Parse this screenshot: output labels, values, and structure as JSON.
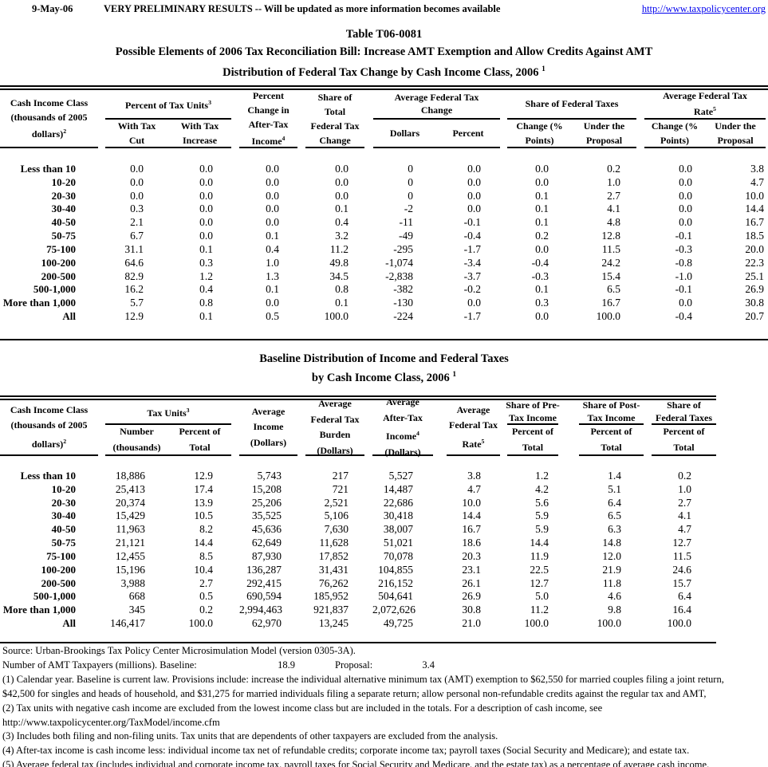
{
  "page_header": {
    "date": "9-May-06",
    "preliminary_note": "VERY PRELIMINARY RESULTS -- Will be updated as more information becomes available",
    "url": "http://www.taxpolicycenter.org"
  },
  "title": {
    "table_number": "Table T06-0081",
    "line1": "Possible Elements of 2006 Tax Reconciliation Bill: Increase AMT Exemption and Allow Credits Against AMT",
    "line2": "Distribution of Federal Tax Change by Cash Income Class, 2006",
    "line2_sup": "1"
  },
  "table1": {
    "stub_head": {
      "lines": [
        "Cash Income Class",
        "(thousands of 2005",
        "dollars)"
      ],
      "sup": "2"
    },
    "columns": [
      {
        "title": {
          "lines": [
            "Percent of Tax Units"
          ],
          "sup": "3"
        },
        "subs": [
          {
            "lines": [
              "With Tax",
              "Cut"
            ]
          },
          {
            "lines": [
              "With Tax",
              "Increase"
            ]
          }
        ]
      },
      {
        "head": {
          "lines": [
            "Percent",
            "Change in",
            "After-Tax",
            "Income"
          ],
          "sup": "4"
        }
      },
      {
        "head": {
          "lines": [
            "Share of",
            "Total",
            "Federal Tax",
            "Change"
          ]
        }
      },
      {
        "title": {
          "lines": [
            "Average Federal Tax",
            "Change"
          ]
        },
        "subs": [
          {
            "lines": [
              "Dollars"
            ]
          },
          {
            "lines": [
              "Percent"
            ]
          }
        ]
      },
      {
        "title": {
          "lines": [
            "Share of Federal Taxes"
          ]
        },
        "subs": [
          {
            "lines": [
              "Change (%",
              "Points)"
            ]
          },
          {
            "lines": [
              "Under the",
              "Proposal"
            ]
          }
        ]
      },
      {
        "title": {
          "lines": [
            "Average Federal Tax",
            "Rate"
          ],
          "sup": "5"
        },
        "subs": [
          {
            "lines": [
              "Change (%",
              "Points)"
            ]
          },
          {
            "lines": [
              "Under the",
              "Proposal"
            ]
          }
        ]
      }
    ],
    "rows": [
      {
        "label": "Less than 10",
        "values": [
          "0.0",
          "0.0",
          "0.0",
          "0.0",
          "0",
          "0.0",
          "0.0",
          "0.2",
          "0.0",
          "3.8"
        ]
      },
      {
        "label": "10-20",
        "values": [
          "0.0",
          "0.0",
          "0.0",
          "0.0",
          "0",
          "0.0",
          "0.0",
          "1.0",
          "0.0",
          "4.7"
        ]
      },
      {
        "label": "20-30",
        "values": [
          "0.0",
          "0.0",
          "0.0",
          "0.0",
          "0",
          "0.0",
          "0.1",
          "2.7",
          "0.0",
          "10.0"
        ]
      },
      {
        "label": "30-40",
        "values": [
          "0.3",
          "0.0",
          "0.0",
          "0.1",
          "-2",
          "0.0",
          "0.1",
          "4.1",
          "0.0",
          "14.4"
        ]
      },
      {
        "label": "40-50",
        "values": [
          "2.1",
          "0.0",
          "0.0",
          "0.4",
          "-11",
          "-0.1",
          "0.1",
          "4.8",
          "0.0",
          "16.7"
        ]
      },
      {
        "label": "50-75",
        "values": [
          "6.7",
          "0.0",
          "0.1",
          "3.2",
          "-49",
          "-0.4",
          "0.2",
          "12.8",
          "-0.1",
          "18.5"
        ]
      },
      {
        "label": "75-100",
        "values": [
          "31.1",
          "0.1",
          "0.4",
          "11.2",
          "-295",
          "-1.7",
          "0.0",
          "11.5",
          "-0.3",
          "20.0"
        ]
      },
      {
        "label": "100-200",
        "values": [
          "64.6",
          "0.3",
          "1.0",
          "49.8",
          "-1,074",
          "-3.4",
          "-0.4",
          "24.2",
          "-0.8",
          "22.3"
        ]
      },
      {
        "label": "200-500",
        "values": [
          "82.9",
          "1.2",
          "1.3",
          "34.5",
          "-2,838",
          "-3.7",
          "-0.3",
          "15.4",
          "-1.0",
          "25.1"
        ]
      },
      {
        "label": "500-1,000",
        "values": [
          "16.2",
          "0.4",
          "0.1",
          "0.8",
          "-382",
          "-0.2",
          "0.1",
          "6.5",
          "-0.1",
          "26.9"
        ]
      },
      {
        "label": "More than 1,000",
        "values": [
          "5.7",
          "0.8",
          "0.0",
          "0.1",
          "-130",
          "0.0",
          "0.3",
          "16.7",
          "0.0",
          "30.8"
        ]
      },
      {
        "label": "All",
        "values": [
          "12.9",
          "0.1",
          "0.5",
          "100.0",
          "-224",
          "-1.7",
          "0.0",
          "100.0",
          "-0.4",
          "20.7"
        ]
      }
    ]
  },
  "table2_title": {
    "line1": "Baseline Distribution of Income and Federal Taxes",
    "line2": "by Cash Income Class, 2006",
    "line2_sup": "1"
  },
  "table2": {
    "stub_head": {
      "lines": [
        "Cash Income Class",
        "(thousands of 2005",
        "dollars)"
      ],
      "sup": "2"
    },
    "columns": [
      {
        "title": {
          "lines": [
            "Tax Units"
          ],
          "sup": "3"
        },
        "subs": [
          {
            "lines": [
              "Number",
              "(thousands)"
            ]
          },
          {
            "lines": [
              "Percent of",
              "Total"
            ]
          }
        ]
      },
      {
        "head": {
          "lines": [
            "Average",
            "Income",
            "(Dollars)"
          ]
        }
      },
      {
        "head": {
          "lines": [
            "Average",
            "Federal Tax",
            "Burden",
            "(Dollars)"
          ]
        }
      },
      {
        "head": {
          "lines": [
            "Average",
            "After-Tax",
            "Income",
            "(Dollars)"
          ],
          "sup": "4",
          "sup_line": 2
        }
      },
      {
        "head": {
          "lines": [
            "Average",
            "Federal Tax",
            "Rate"
          ],
          "sup": "5"
        }
      },
      {
        "title": {
          "lines": [
            "Share of Pre-",
            "Tax Income"
          ]
        },
        "subs": [
          {
            "lines": [
              "Percent of",
              "Total"
            ]
          }
        ]
      },
      {
        "title": {
          "lines": [
            "Share of Post-",
            "Tax Income"
          ]
        },
        "subs": [
          {
            "lines": [
              "Percent of",
              "Total"
            ]
          }
        ]
      },
      {
        "title": {
          "lines": [
            "Share of",
            "Federal Taxes"
          ]
        },
        "subs": [
          {
            "lines": [
              "Percent of",
              "Total"
            ]
          }
        ]
      }
    ],
    "rows": [
      {
        "label": "Less than 10",
        "values": [
          "18,886",
          "12.9",
          "5,743",
          "217",
          "5,527",
          "3.8",
          "1.2",
          "1.4",
          "0.2"
        ]
      },
      {
        "label": "10-20",
        "values": [
          "25,413",
          "17.4",
          "15,208",
          "721",
          "14,487",
          "4.7",
          "4.2",
          "5.1",
          "1.0"
        ]
      },
      {
        "label": "20-30",
        "values": [
          "20,374",
          "13.9",
          "25,206",
          "2,521",
          "22,686",
          "10.0",
          "5.6",
          "6.4",
          "2.7"
        ]
      },
      {
        "label": "30-40",
        "values": [
          "15,429",
          "10.5",
          "35,525",
          "5,106",
          "30,418",
          "14.4",
          "5.9",
          "6.5",
          "4.1"
        ]
      },
      {
        "label": "40-50",
        "values": [
          "11,963",
          "8.2",
          "45,636",
          "7,630",
          "38,007",
          "16.7",
          "5.9",
          "6.3",
          "4.7"
        ]
      },
      {
        "label": "50-75",
        "values": [
          "21,121",
          "14.4",
          "62,649",
          "11,628",
          "51,021",
          "18.6",
          "14.4",
          "14.8",
          "12.7"
        ]
      },
      {
        "label": "75-100",
        "values": [
          "12,455",
          "8.5",
          "87,930",
          "17,852",
          "70,078",
          "20.3",
          "11.9",
          "12.0",
          "11.5"
        ]
      },
      {
        "label": "100-200",
        "values": [
          "15,196",
          "10.4",
          "136,287",
          "31,431",
          "104,855",
          "23.1",
          "22.5",
          "21.9",
          "24.6"
        ]
      },
      {
        "label": "200-500",
        "values": [
          "3,988",
          "2.7",
          "292,415",
          "76,262",
          "216,152",
          "26.1",
          "12.7",
          "11.8",
          "15.7"
        ]
      },
      {
        "label": "500-1,000",
        "values": [
          "668",
          "0.5",
          "690,594",
          "185,952",
          "504,641",
          "26.9",
          "5.0",
          "4.6",
          "6.4"
        ]
      },
      {
        "label": "More than 1,000",
        "values": [
          "345",
          "0.2",
          "2,994,463",
          "921,837",
          "2,072,626",
          "30.8",
          "11.2",
          "9.8",
          "16.4"
        ]
      },
      {
        "label": "All",
        "values": [
          "146,417",
          "100.0",
          "62,970",
          "13,245",
          "49,725",
          "21.0",
          "100.0",
          "100.0",
          "100.0"
        ]
      }
    ]
  },
  "footer": {
    "source": "Source: Urban-Brookings Tax Policy Center Microsimulation Model (version 0305-3A).",
    "amt": {
      "label": "Number of AMT Taxpayers (millions).  Baseline:",
      "baseline_value": "18.9",
      "proposal_label": "Proposal:",
      "proposal_value": "3.4"
    },
    "notes": [
      "(1) Calendar year. Baseline is current law.  Provisions include: increase the individual alternative minimum tax (AMT) exemption to $62,550 for married couples filing a joint return,",
      "$42,500 for singles and heads of household, and $31,275 for married individuals filing a separate return; allow personal non-refundable credits against the regular tax and AMT,",
      "(2) Tax units with negative cash income are excluded from the lowest income class but are included in the totals. For a description of cash income, see",
      "http://www.taxpolicycenter.org/TaxModel/income.cfm",
      "(3) Includes both filing and non-filing units.  Tax units that are dependents of other taxpayers are excluded from the analysis.",
      "(4) After-tax income is cash income less: individual income tax net of refundable credits; corporate income tax; payroll taxes (Social Security and Medicare); and estate tax.",
      "(5) Average federal tax (includes individual and corporate income tax, payroll taxes for Social Security and Medicare, and the estate tax) as a percentage of average cash income."
    ]
  }
}
